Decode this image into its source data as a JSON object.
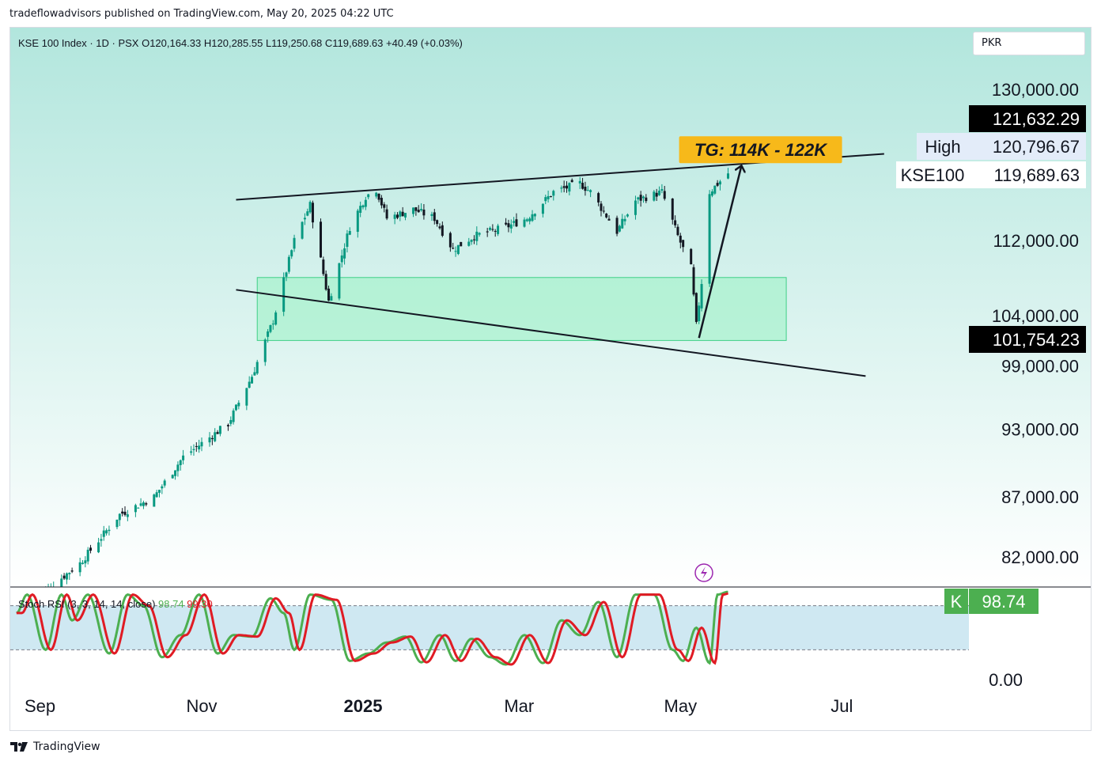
{
  "publisher_line": "tradeflowadvisors published on TradingView.com, May 20, 2025 04:22 UTC",
  "currency_button": "PKR",
  "footer_brand": "TradingView",
  "colors": {
    "up": "#089981",
    "down": "#131722",
    "stoch_k": "#4caf50",
    "stoch_d": "#e01b24",
    "bg_top": "#b2e6dd",
    "bg_bottom": "#ffffff",
    "zone_fill": "#9ff2c7",
    "zone_stroke": "#3fcf86",
    "target_label": "#f7b91a",
    "indicator_bg": "#bfe0ee"
  },
  "chart_data": [
    {
      "type": "candlestick",
      "header": {
        "symbol": "KSE 100 Index · 1D · PSX",
        "open": "O120,164.33",
        "high": "H120,285.55",
        "low": "L119,250.68",
        "close": "C119,689.63",
        "change": "+40.49 (+0.03%)"
      },
      "y_ticks": [
        "130,000.00",
        "112,000.00",
        "104,000.00",
        "99,000.00",
        "93,000.00",
        "87,000.00",
        "82,000.00"
      ],
      "x_ticks": [
        "Sep",
        "Nov",
        "2025",
        "Mar",
        "May",
        "Jul"
      ],
      "price_labels": [
        {
          "label": "",
          "value": "121,632.29"
        },
        {
          "label": "High",
          "value": "120,796.67"
        },
        {
          "label": "KSE100",
          "value": "119,689.63"
        },
        {
          "label": "",
          "value": "101,754.23"
        }
      ],
      "annotation": "TG: 114K - 122K",
      "scale": "log",
      "ylim": [
        78000,
        140000
      ],
      "key_points": [
        {
          "date": "2024-08-29",
          "close": 78500
        },
        {
          "date": "2024-09-16",
          "close": 81500
        },
        {
          "date": "2024-10-01",
          "close": 85500
        },
        {
          "date": "2024-10-14",
          "close": 87000
        },
        {
          "date": "2024-10-25",
          "close": 90500
        },
        {
          "date": "2024-11-11",
          "close": 93500
        },
        {
          "date": "2024-11-20",
          "close": 98000
        },
        {
          "date": "2024-11-28",
          "close": 103500
        },
        {
          "date": "2024-12-06",
          "close": 112000
        },
        {
          "date": "2024-12-12",
          "close": 116000
        },
        {
          "date": "2024-12-19",
          "close": 105500
        },
        {
          "date": "2024-12-27",
          "close": 113500
        },
        {
          "date": "2025-01-02",
          "close": 117000
        },
        {
          "date": "2025-01-06",
          "close": 117800
        },
        {
          "date": "2025-01-10",
          "close": 114500
        },
        {
          "date": "2025-01-20",
          "close": 115500
        },
        {
          "date": "2025-01-28",
          "close": 114500
        },
        {
          "date": "2025-02-04",
          "close": 111000
        },
        {
          "date": "2025-02-12",
          "close": 112500
        },
        {
          "date": "2025-02-24",
          "close": 113500
        },
        {
          "date": "2025-03-04",
          "close": 114500
        },
        {
          "date": "2025-03-14",
          "close": 117500
        },
        {
          "date": "2025-03-24",
          "close": 118500
        },
        {
          "date": "2025-03-28",
          "close": 117500
        },
        {
          "date": "2025-04-07",
          "close": 113000
        },
        {
          "date": "2025-04-14",
          "close": 116500
        },
        {
          "date": "2025-04-24",
          "close": 117500
        },
        {
          "date": "2025-04-30",
          "close": 112500
        },
        {
          "date": "2025-05-05",
          "close": 109000
        },
        {
          "date": "2025-05-07",
          "close": 103000
        },
        {
          "date": "2025-05-09",
          "close": 107500
        },
        {
          "date": "2025-05-12",
          "close": 117500
        },
        {
          "date": "2025-05-19",
          "close": 119689.63
        }
      ],
      "trendlines": [
        {
          "name": "upper",
          "from": {
            "date": "2024-11-14",
            "price": 116600
          },
          "to": {
            "date": "2025-07-17",
            "price": 122000
          }
        },
        {
          "name": "lower",
          "from": {
            "date": "2024-11-14",
            "price": 106700
          },
          "to": {
            "date": "2025-07-10",
            "price": 98000
          }
        }
      ],
      "zone": {
        "from_date": "2024-11-22",
        "to_date": "2025-06-10",
        "price_top": 108000,
        "price_bottom": 101500
      },
      "projection_arrow": {
        "from": {
          "date": "2025-05-08",
          "price": 101754.23
        },
        "to": {
          "date": "2025-05-24",
          "price": 120500
        }
      }
    },
    {
      "type": "line",
      "title": "Stoch RSI (3, 3, 14, 14, close)",
      "k_value": "98.74",
      "d_value": "99.30",
      "k_badge_letter": "K",
      "y_ticks": [
        "0.00"
      ],
      "bands": [
        80,
        20
      ],
      "ylim": [
        0,
        100
      ],
      "k_pattern": [
        {
          "date": "2024-08-23",
          "k": 70
        },
        {
          "date": "2024-08-27",
          "k": 95
        },
        {
          "date": "2024-09-03",
          "k": 20
        },
        {
          "date": "2024-09-09",
          "k": 95
        },
        {
          "date": "2024-09-13",
          "k": 60
        },
        {
          "date": "2024-09-19",
          "k": 95
        },
        {
          "date": "2024-09-27",
          "k": 15
        },
        {
          "date": "2024-10-04",
          "k": 95
        },
        {
          "date": "2024-10-10",
          "k": 80
        },
        {
          "date": "2024-10-17",
          "k": 10
        },
        {
          "date": "2024-10-24",
          "k": 40
        },
        {
          "date": "2024-10-31",
          "k": 95
        },
        {
          "date": "2024-11-07",
          "k": 15
        },
        {
          "date": "2024-11-13",
          "k": 40
        },
        {
          "date": "2024-11-20",
          "k": 38
        },
        {
          "date": "2024-11-27",
          "k": 90
        },
        {
          "date": "2024-12-02",
          "k": 70
        },
        {
          "date": "2024-12-06",
          "k": 20
        },
        {
          "date": "2024-12-12",
          "k": 95
        },
        {
          "date": "2024-12-20",
          "k": 88
        },
        {
          "date": "2024-12-27",
          "k": 5
        },
        {
          "date": "2025-01-03",
          "k": 15
        },
        {
          "date": "2025-01-10",
          "k": 30
        },
        {
          "date": "2025-01-17",
          "k": 38
        },
        {
          "date": "2025-01-23",
          "k": 3
        },
        {
          "date": "2025-01-30",
          "k": 40
        },
        {
          "date": "2025-02-05",
          "k": 5
        },
        {
          "date": "2025-02-11",
          "k": 35
        },
        {
          "date": "2025-02-18",
          "k": 10
        },
        {
          "date": "2025-02-24",
          "k": 0
        },
        {
          "date": "2025-03-03",
          "k": 40
        },
        {
          "date": "2025-03-10",
          "k": 2
        },
        {
          "date": "2025-03-17",
          "k": 60
        },
        {
          "date": "2025-03-24",
          "k": 40
        },
        {
          "date": "2025-03-31",
          "k": 85
        },
        {
          "date": "2025-04-07",
          "k": 10
        },
        {
          "date": "2025-04-14",
          "k": 95
        },
        {
          "date": "2025-04-21",
          "k": 95
        },
        {
          "date": "2025-04-28",
          "k": 20
        },
        {
          "date": "2025-05-02",
          "k": 5
        },
        {
          "date": "2025-05-07",
          "k": 50
        },
        {
          "date": "2025-05-12",
          "k": 2
        },
        {
          "date": "2025-05-15",
          "k": 95
        },
        {
          "date": "2025-05-19",
          "k": 98.74
        }
      ]
    }
  ]
}
